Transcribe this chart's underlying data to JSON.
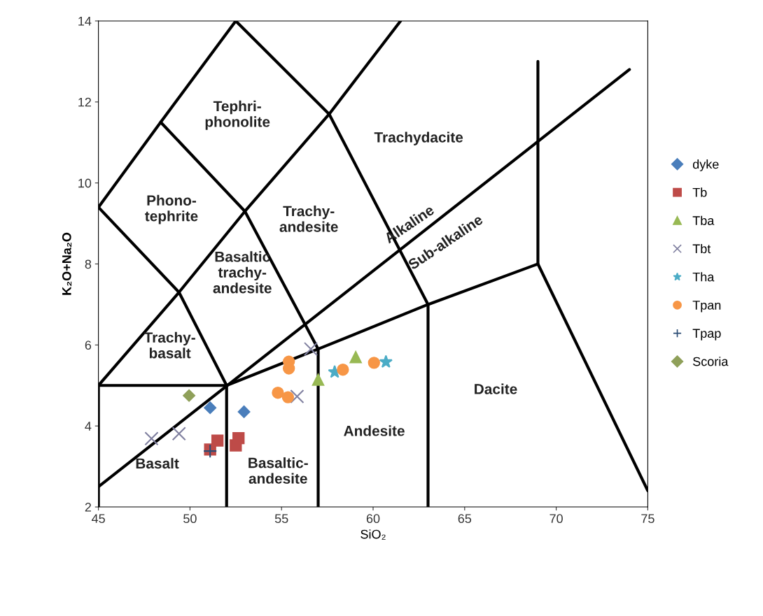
{
  "chart_data": {
    "type": "scatter",
    "xlabel": "SiO₂",
    "ylabel": "K₂O+Na₂O",
    "xlim": [
      45,
      75
    ],
    "xticks": [
      45,
      50,
      55,
      60,
      65,
      70,
      75
    ],
    "ylim": [
      2,
      14
    ],
    "yticks": [
      2,
      4,
      6,
      8,
      10,
      12,
      14
    ],
    "grid": false,
    "legend": "right",
    "series": [
      {
        "name": "dyke",
        "color": "#4a7ebb",
        "marker": "diamond",
        "x": [
          51.1,
          52.95
        ],
        "values": [
          4.45,
          4.35
        ]
      },
      {
        "name": "Tb",
        "color": "#be4b48",
        "marker": "square",
        "x": [
          51.1,
          51.5,
          52.5,
          52.65
        ],
        "values": [
          3.42,
          3.64,
          3.52,
          3.7
        ]
      },
      {
        "name": "Tba",
        "color": "#98b954",
        "marker": "triangle",
        "x": [
          57.0,
          59.05
        ],
        "values": [
          5.14,
          5.7
        ]
      },
      {
        "name": "Tbt",
        "color": "#7f7f9f",
        "marker": "cross",
        "x": [
          47.9,
          49.4,
          55.85,
          56.6
        ],
        "values": [
          3.69,
          3.81,
          4.73,
          5.9
        ]
      },
      {
        "name": "Tha",
        "color": "#4bacc6",
        "marker": "star",
        "x": [
          57.9,
          60.7
        ],
        "values": [
          5.33,
          5.58
        ]
      },
      {
        "name": "Tpan",
        "color": "#f79646",
        "marker": "circle",
        "x": [
          55.4,
          55.4,
          54.8,
          55.35,
          58.35,
          60.05
        ],
        "values": [
          5.59,
          5.42,
          4.82,
          4.71,
          5.39,
          5.56
        ]
      },
      {
        "name": "Tpap",
        "color": "#2c4d75",
        "marker": "plus",
        "x": [
          51.1
        ],
        "values": [
          3.38
        ]
      },
      {
        "name": "Scoria",
        "color": "#8fa05a",
        "marker": "diamond",
        "x": [
          49.95
        ],
        "values": [
          4.75
        ]
      },
      {
        "type": "line",
        "color": "#000000",
        "x": [
          45,
          48.4,
          52.5
        ],
        "values": [
          9.4,
          11.5,
          14
        ]
      },
      {
        "type": "line",
        "color": "#000000",
        "x": [
          48.4,
          53,
          57.6,
          61.5
        ],
        "values": [
          11.5,
          9.3,
          11.7,
          14
        ]
      },
      {
        "type": "line",
        "color": "#000000",
        "x": [
          52.5,
          57.6,
          63,
          63
        ],
        "values": [
          14,
          11.7,
          7,
          2
        ]
      },
      {
        "type": "line",
        "color": "#000000",
        "x": [
          45,
          49.4,
          53,
          57,
          57
        ],
        "values": [
          9.4,
          7.3,
          9.3,
          5.9,
          2
        ]
      },
      {
        "type": "line",
        "color": "#000000",
        "x": [
          45,
          49.4,
          52,
          52
        ],
        "values": [
          5,
          7.3,
          5,
          2
        ]
      },
      {
        "type": "line",
        "color": "#000000",
        "x": [
          45,
          45,
          52,
          57,
          63,
          69,
          75
        ],
        "values": [
          2,
          5,
          5,
          5.9,
          7,
          8,
          2.4
        ]
      },
      {
        "type": "line",
        "color": "#000000",
        "x": [
          69,
          69
        ],
        "values": [
          8,
          13
        ]
      },
      {
        "type": "line",
        "color": "#000000",
        "x": [
          45,
          74
        ],
        "values": [
          2.5,
          12.8
        ]
      }
    ],
    "annotations": [
      "Tephri-\nphonolite",
      "Phono-\ntephrite",
      "Trachy-\nandesite",
      "Trachydacite",
      "Alkaline",
      "Sub-alkaline",
      "Basaltic\ntrachy-\nandesite",
      "Trachy-\nbasalt",
      "Dacite",
      "Andesite",
      "Basaltic-\nandesite",
      "Basalt"
    ]
  }
}
